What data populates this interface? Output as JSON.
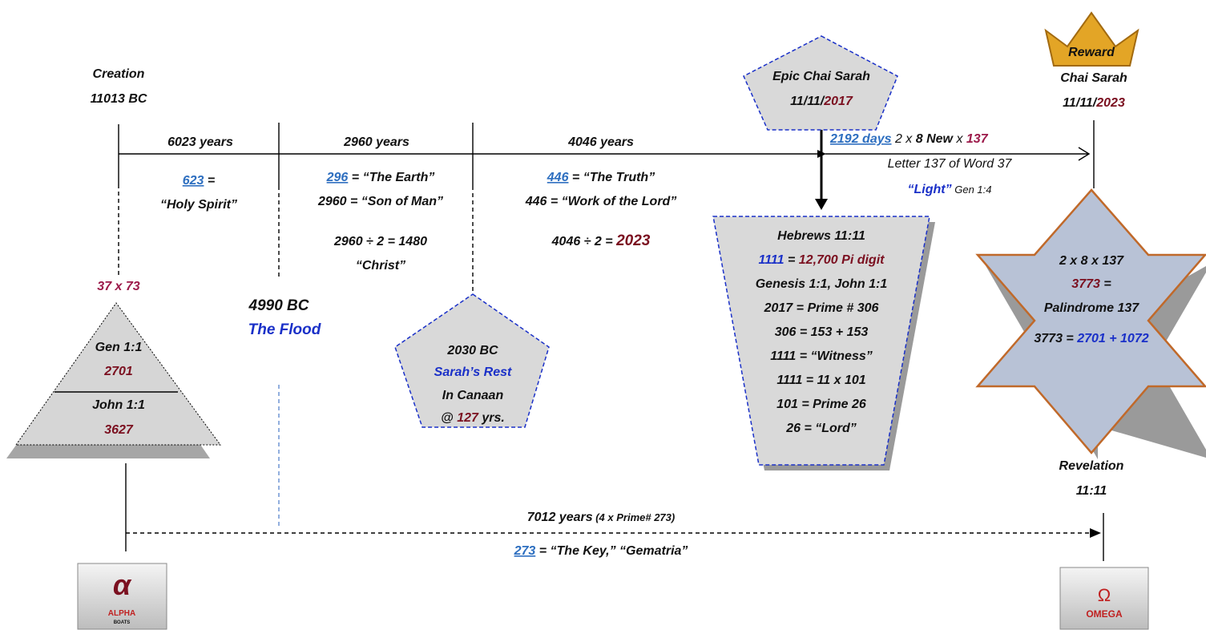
{
  "creation": {
    "label": "Creation",
    "date": "11013 BC"
  },
  "spans": [
    "6023 years",
    "2960 years",
    "4046 years"
  ],
  "notes": [
    [
      [
        "623",
        " ="
      ],
      [
        "“Holy Spirit”"
      ]
    ],
    [
      [
        "296",
        " = “The Earth”"
      ],
      [
        "2960 = “Son of Man”"
      ],
      [
        "2960 ÷ 2 = 1480"
      ],
      [
        "“Christ”"
      ]
    ],
    [
      [
        "446",
        " = “The Truth”"
      ],
      [
        "446 = “Work of the Lord”"
      ],
      [
        "4046 ÷ 2 = ",
        "2023"
      ]
    ]
  ],
  "triangle": {
    "top": "37 x 73",
    "upper": [
      "Gen 1:1",
      "2701"
    ],
    "lower": [
      "John 1:1",
      "3627"
    ]
  },
  "flood": {
    "date": "4990 BC",
    "label": "The Flood"
  },
  "sarah_rest": [
    [
      "2030 BC"
    ],
    [
      "Sarah’s Rest"
    ],
    [
      "In Canaan"
    ],
    [
      "@ ",
      "127",
      " yrs."
    ]
  ],
  "epic": [
    [
      "Epic Chai Sarah"
    ],
    [
      "11/11/",
      "2017"
    ]
  ],
  "days": [
    [
      "2192 days",
      " 2 x ",
      "8 New",
      " x ",
      "137"
    ],
    [
      "Letter 137 of Word 37"
    ],
    [
      "“Light”",
      " Gen 1:4"
    ]
  ],
  "trapezoid": [
    [
      "Hebrews 11:11"
    ],
    [
      "1111",
      " = ",
      "12,700 Pi digit"
    ],
    [
      "Genesis 1:1, John 1:1"
    ],
    [
      "2017 = Prime # 306"
    ],
    [
      "306 = 153 + 153"
    ],
    [
      "1111 = “Witness”"
    ],
    [
      "1111 = 11 x 101"
    ],
    [
      "101 = Prime 26"
    ],
    [
      "26 = “Lord”"
    ]
  ],
  "reward": {
    "badge": "Reward",
    "lines": [
      [
        "Chai Sarah"
      ],
      [
        "11/11/",
        "2023"
      ]
    ]
  },
  "star": [
    [
      "2 x 8 x 137"
    ],
    [
      "3773",
      " ="
    ],
    [
      "Palindrome 137"
    ],
    [
      "3773 = ",
      "2701 + 1072"
    ]
  ],
  "revelation": [
    "Revelation",
    "11:11"
  ],
  "bottom": [
    [
      "7012 years",
      " (4 x Prime# 273)"
    ],
    [
      "273",
      " = “The Key,” “Gematria”"
    ]
  ],
  "logos": {
    "alpha": [
      "α",
      "ALPHA",
      "BOATS"
    ],
    "omega": [
      "Ω",
      "OMEGA"
    ]
  }
}
